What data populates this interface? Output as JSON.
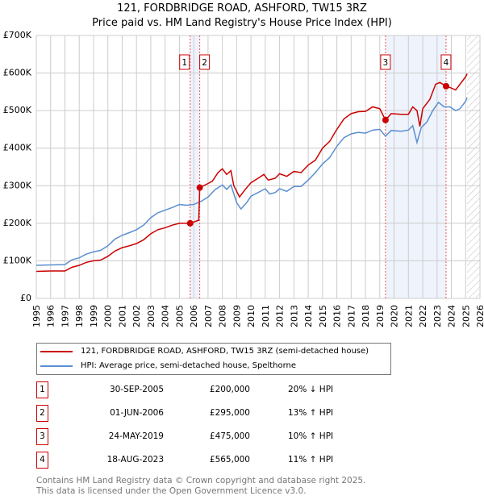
{
  "chart_data": {
    "type": "line",
    "title": "121, FORDBRIDGE ROAD, ASHFORD, TW15 3RZ",
    "subtitle": "Price paid vs. HM Land Registry's House Price Index (HPI)",
    "xlim": [
      1995,
      2026
    ],
    "ylim": [
      0,
      700000
    ],
    "x_ticks": [
      "1995",
      "1996",
      "1997",
      "1998",
      "1999",
      "2000",
      "2001",
      "2002",
      "2003",
      "2004",
      "2005",
      "2006",
      "2007",
      "2008",
      "2009",
      "2010",
      "2011",
      "2012",
      "2013",
      "2014",
      "2015",
      "2016",
      "2017",
      "2018",
      "2019",
      "2020",
      "2021",
      "2022",
      "2023",
      "2024",
      "2025",
      "2026"
    ],
    "y_ticks": [
      {
        "v": 0,
        "label": "£0"
      },
      {
        "v": 100000,
        "label": "£100K"
      },
      {
        "v": 200000,
        "label": "£200K"
      },
      {
        "v": 300000,
        "label": "£300K"
      },
      {
        "v": 400000,
        "label": "£400K"
      },
      {
        "v": 500000,
        "label": "£500K"
      },
      {
        "v": 600000,
        "label": "£600K"
      },
      {
        "v": 700000,
        "label": "£700K"
      }
    ],
    "grid": true,
    "shaded_periods": [
      [
        2005.75,
        2006.42
      ],
      [
        2019.4,
        2023.63
      ]
    ],
    "forecast_hatch_from": 2025.1,
    "series": [
      {
        "name": "121, FORDBRIDGE ROAD, ASHFORD, TW15 3RZ (semi-detached house)",
        "color": "#cc0000",
        "points": [
          [
            1995,
            72
          ],
          [
            1996,
            73
          ],
          [
            1997,
            73
          ],
          [
            1997.5,
            83
          ],
          [
            1998,
            88
          ],
          [
            1998.5,
            96
          ],
          [
            1999,
            100
          ],
          [
            1999.5,
            102
          ],
          [
            2000,
            112
          ],
          [
            2000.5,
            126
          ],
          [
            2001,
            135
          ],
          [
            2001.5,
            140
          ],
          [
            2002,
            146
          ],
          [
            2002.5,
            156
          ],
          [
            2003,
            172
          ],
          [
            2003.5,
            183
          ],
          [
            2004,
            188
          ],
          [
            2004.5,
            195
          ],
          [
            2005,
            200
          ],
          [
            2005.75,
            200
          ],
          [
            2006.35,
            208
          ],
          [
            2006.42,
            295
          ],
          [
            2006.8,
            302
          ],
          [
            2007.3,
            312
          ],
          [
            2007.7,
            335
          ],
          [
            2008,
            345
          ],
          [
            2008.3,
            330
          ],
          [
            2008.6,
            340
          ],
          [
            2008.8,
            300
          ],
          [
            2009.2,
            270
          ],
          [
            2009.6,
            290
          ],
          [
            2010,
            308
          ],
          [
            2010.5,
            320
          ],
          [
            2010.9,
            330
          ],
          [
            2011.2,
            315
          ],
          [
            2011.7,
            320
          ],
          [
            2012,
            332
          ],
          [
            2012.5,
            325
          ],
          [
            2013,
            338
          ],
          [
            2013.5,
            335
          ],
          [
            2014,
            355
          ],
          [
            2014.5,
            368
          ],
          [
            2015,
            400
          ],
          [
            2015.5,
            418
          ],
          [
            2016,
            450
          ],
          [
            2016.5,
            478
          ],
          [
            2017,
            492
          ],
          [
            2017.5,
            497
          ],
          [
            2018,
            498
          ],
          [
            2018.5,
            510
          ],
          [
            2019,
            505
          ],
          [
            2019.4,
            475
          ],
          [
            2019.8,
            492
          ],
          [
            2020.5,
            490
          ],
          [
            2021,
            490
          ],
          [
            2021.3,
            510
          ],
          [
            2021.6,
            500
          ],
          [
            2021.8,
            458
          ],
          [
            2022,
            505
          ],
          [
            2022.5,
            530
          ],
          [
            2022.9,
            570
          ],
          [
            2023.2,
            575
          ],
          [
            2023.63,
            565
          ],
          [
            2024,
            560
          ],
          [
            2024.3,
            555
          ],
          [
            2024.8,
            580
          ],
          [
            2025,
            590
          ],
          [
            2025.1,
            598
          ]
        ]
      },
      {
        "name": "HPI: Average price, semi-detached house, Spelthorne",
        "color": "#5b8fd0",
        "points": [
          [
            1995,
            88
          ],
          [
            1996,
            89
          ],
          [
            1997,
            90
          ],
          [
            1997.5,
            103
          ],
          [
            1998,
            108
          ],
          [
            1998.5,
            118
          ],
          [
            1999,
            124
          ],
          [
            1999.5,
            128
          ],
          [
            2000,
            140
          ],
          [
            2000.5,
            158
          ],
          [
            2001,
            168
          ],
          [
            2001.5,
            175
          ],
          [
            2002,
            183
          ],
          [
            2002.5,
            195
          ],
          [
            2003,
            215
          ],
          [
            2003.5,
            228
          ],
          [
            2004,
            235
          ],
          [
            2004.5,
            242
          ],
          [
            2005,
            250
          ],
          [
            2005.5,
            248
          ],
          [
            2006,
            250
          ],
          [
            2006.5,
            258
          ],
          [
            2007,
            270
          ],
          [
            2007.5,
            290
          ],
          [
            2008,
            302
          ],
          [
            2008.3,
            290
          ],
          [
            2008.6,
            302
          ],
          [
            2009,
            255
          ],
          [
            2009.3,
            238
          ],
          [
            2009.7,
            255
          ],
          [
            2010,
            272
          ],
          [
            2010.5,
            282
          ],
          [
            2011,
            292
          ],
          [
            2011.3,
            278
          ],
          [
            2011.7,
            282
          ],
          [
            2012,
            292
          ],
          [
            2012.5,
            285
          ],
          [
            2013,
            298
          ],
          [
            2013.5,
            298
          ],
          [
            2014,
            315
          ],
          [
            2014.5,
            335
          ],
          [
            2015,
            358
          ],
          [
            2015.5,
            375
          ],
          [
            2016,
            405
          ],
          [
            2016.5,
            428
          ],
          [
            2017,
            438
          ],
          [
            2017.5,
            442
          ],
          [
            2018,
            440
          ],
          [
            2018.5,
            448
          ],
          [
            2019,
            450
          ],
          [
            2019.4,
            432
          ],
          [
            2019.8,
            447
          ],
          [
            2020.5,
            445
          ],
          [
            2021,
            448
          ],
          [
            2021.3,
            460
          ],
          [
            2021.6,
            415
          ],
          [
            2021.9,
            455
          ],
          [
            2022.3,
            470
          ],
          [
            2022.7,
            500
          ],
          [
            2023.1,
            522
          ],
          [
            2023.5,
            510
          ],
          [
            2023.9,
            510
          ],
          [
            2024.3,
            500
          ],
          [
            2024.6,
            505
          ],
          [
            2025,
            525
          ],
          [
            2025.1,
            535
          ]
        ]
      }
    ],
    "units_note": "values in £ thousands",
    "sales": [
      {
        "n": "1",
        "x": 2005.75,
        "price": 200000,
        "date": "30-SEP-2005",
        "price_label": "£200,000",
        "hpi": "20% ↓ HPI"
      },
      {
        "n": "2",
        "x": 2006.42,
        "price": 295000,
        "date": "01-JUN-2006",
        "price_label": "£295,000",
        "hpi": "13% ↑ HPI"
      },
      {
        "n": "3",
        "x": 2019.4,
        "price": 475000,
        "date": "24-MAY-2019",
        "price_label": "£475,000",
        "hpi": "10% ↑ HPI"
      },
      {
        "n": "4",
        "x": 2023.63,
        "price": 565000,
        "date": "18-AUG-2023",
        "price_label": "£565,000",
        "hpi": "11% ↑ HPI"
      }
    ]
  },
  "footer": {
    "line1": "Contains HM Land Registry data © Crown copyright and database right 2025.",
    "line2": "This data is licensed under the Open Government Licence v3.0."
  }
}
